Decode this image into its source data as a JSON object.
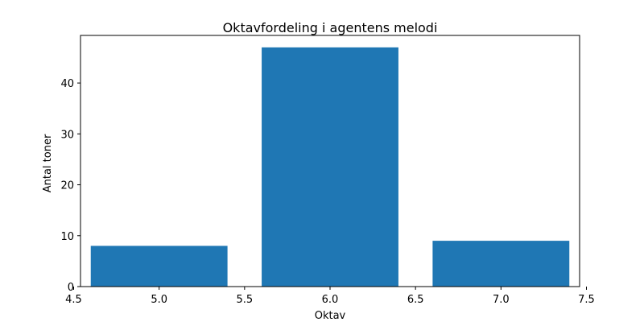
{
  "chart_data": {
    "type": "bar",
    "title": "Oktavfordeling i agentens melodi",
    "xlabel": "Oktav",
    "ylabel": "Antal toner",
    "x": [
      5,
      6,
      7
    ],
    "values": [
      8,
      47,
      9
    ],
    "bar_width": 0.8,
    "xlim": [
      4.54,
      7.46
    ],
    "ylim": [
      0,
      49.35
    ],
    "xticks": [
      4.5,
      5.0,
      5.5,
      6.0,
      6.5,
      7.0,
      7.5
    ],
    "xtick_labels": [
      "4.5",
      "5.0",
      "5.5",
      "6.0",
      "6.5",
      "7.0",
      "7.5"
    ],
    "yticks": [
      0,
      10,
      20,
      30,
      40
    ],
    "ytick_labels": [
      "0",
      "10",
      "20",
      "30",
      "40"
    ],
    "grid": false,
    "legend": "none",
    "bar_color": "#1f77b4"
  }
}
